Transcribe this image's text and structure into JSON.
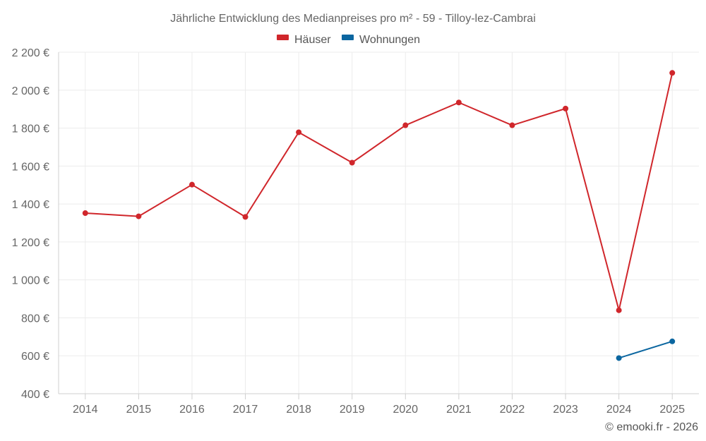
{
  "chart_data": {
    "type": "line",
    "title": "Jährliche Entwicklung des Medianpreises pro m² - 59 - Tilloy-lez-Cambrai",
    "categories": [
      "2014",
      "2015",
      "2016",
      "2017",
      "2018",
      "2019",
      "2020",
      "2021",
      "2022",
      "2023",
      "2024",
      "2025"
    ],
    "y_ticks": [
      "400 €",
      "600 €",
      "800 €",
      "1 000 €",
      "1 200 €",
      "1 400 €",
      "1 600 €",
      "1 800 €",
      "2 000 €",
      "2 200 €"
    ],
    "ylim": [
      400,
      2200
    ],
    "ytick_step": 200,
    "grid": true,
    "legend_position": "top-center",
    "series": [
      {
        "name": "Häuser",
        "color": "#d0262b",
        "values": [
          1352,
          1335,
          1502,
          1332,
          1778,
          1618,
          1815,
          1935,
          1815,
          1903,
          840,
          2091
        ]
      },
      {
        "name": "Wohnungen",
        "color": "#0b66a0",
        "values": [
          null,
          null,
          null,
          null,
          null,
          null,
          null,
          null,
          null,
          null,
          588,
          676
        ]
      }
    ],
    "credit": "© emooki.fr - 2026"
  }
}
